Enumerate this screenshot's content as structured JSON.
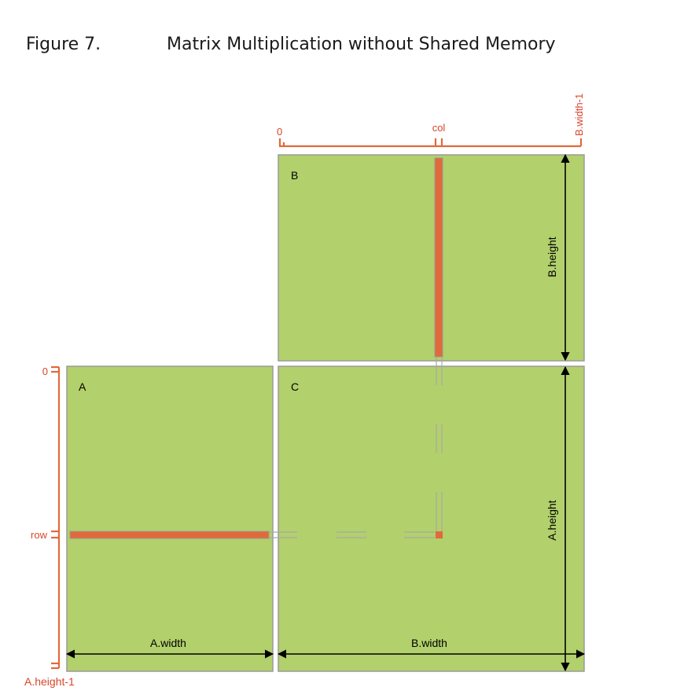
{
  "figure": {
    "number": "Figure 7.",
    "title": "Matrix Multiplication without Shared Memory"
  },
  "matrices": {
    "a": "A",
    "b": "B",
    "c": "C"
  },
  "dimensions": {
    "a_width": "A.width",
    "b_width": "B.width",
    "b_height": "B.height",
    "a_height": "A.height"
  },
  "b_columns": {
    "start": "0",
    "col": "col",
    "end": "B.width-1"
  },
  "a_rows": {
    "start": "0",
    "row": "row",
    "end": "A.height-1"
  },
  "colors": {
    "matrix_fill": "#b2d06b",
    "highlight": "#e06a3b",
    "index_axis": "#e06a3b",
    "index_label": "#d9452b",
    "frame": "#9a9a9a",
    "arrow": "#000000"
  }
}
